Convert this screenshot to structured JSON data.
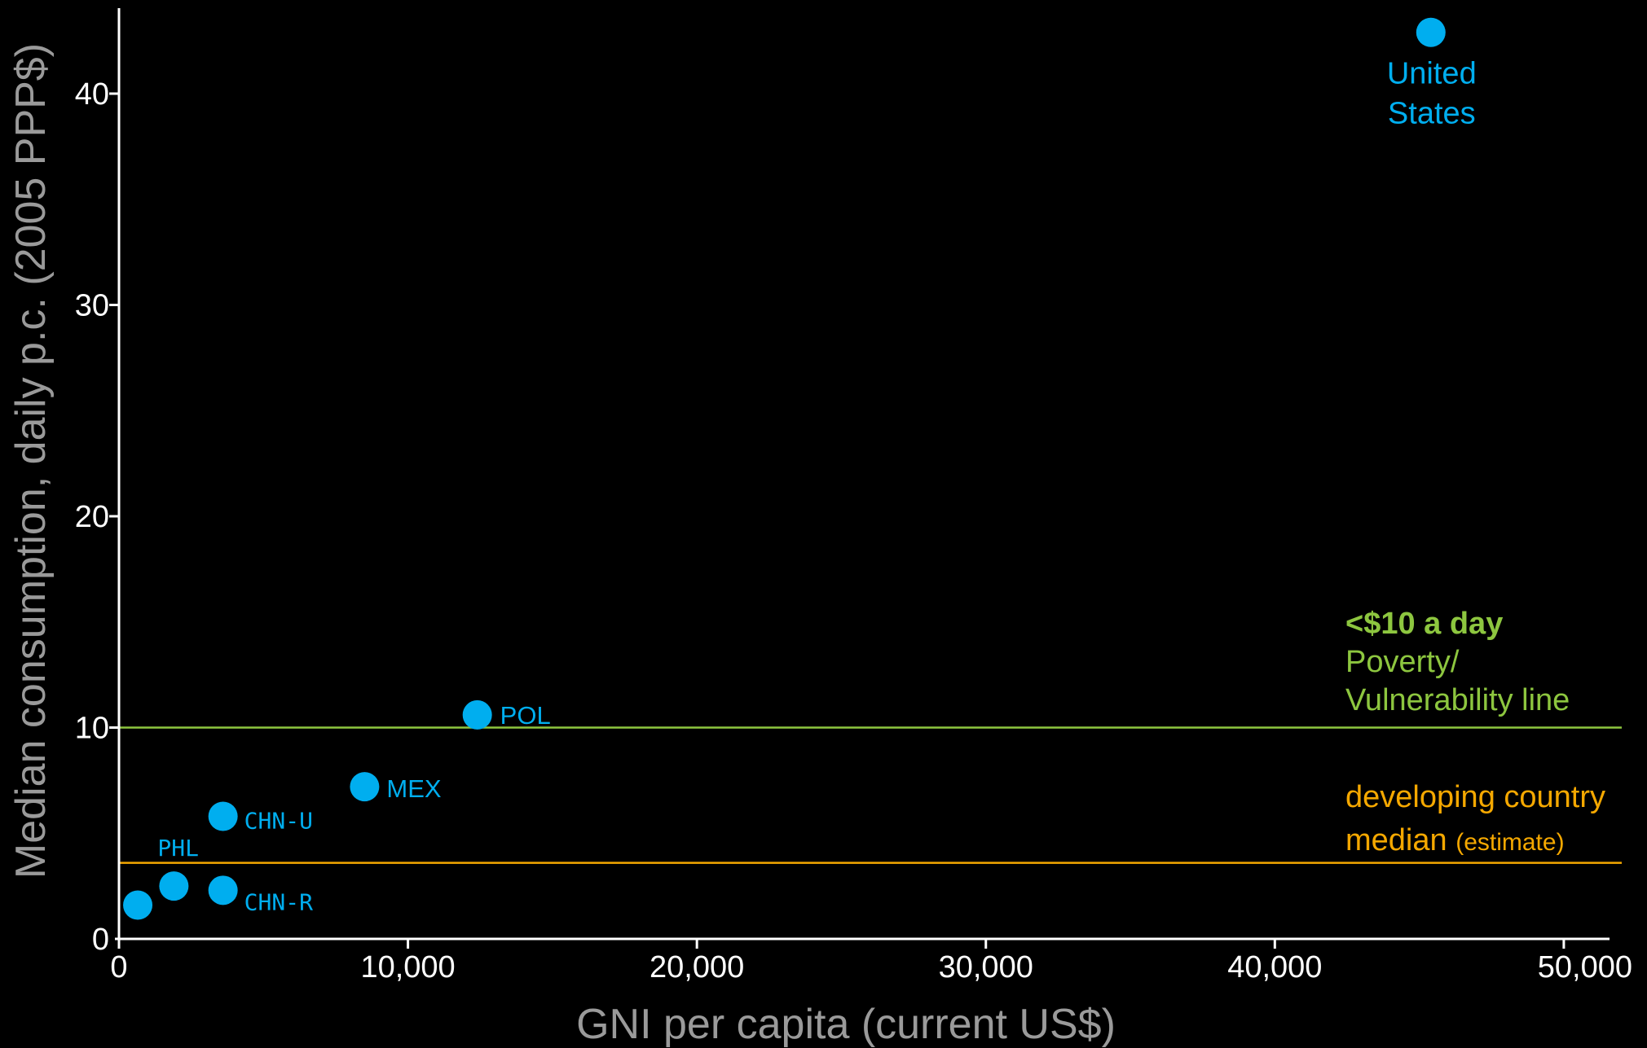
{
  "chart_data": {
    "type": "scatter",
    "title": "",
    "xlabel": "GNI per capita (current US$)",
    "ylabel": "Median consumption, daily p.c. (2005 PPP$)",
    "xlim": [
      0,
      51500
    ],
    "ylim": [
      0,
      44.2
    ],
    "x_ticks": [
      0,
      10000,
      20000,
      30000,
      40000,
      50000
    ],
    "x_tick_labels": [
      "0",
      "10,000",
      "20,000",
      "30,000",
      "40,000",
      "50,000"
    ],
    "y_ticks": [
      0,
      10,
      20,
      30,
      40
    ],
    "y_tick_labels": [
      "0",
      "10",
      "20",
      "30",
      "40"
    ],
    "grid": false,
    "point_color": "#00aeef",
    "points": [
      {
        "label": "",
        "x": 650,
        "y": 1.6
      },
      {
        "label": "PHL",
        "x": 1900,
        "y": 2.5
      },
      {
        "label": "CHN-R",
        "x": 3600,
        "y": 2.3
      },
      {
        "label": "CHN-U",
        "x": 3600,
        "y": 5.8
      },
      {
        "label": "MEX",
        "x": 8500,
        "y": 7.2
      },
      {
        "label": "POL",
        "x": 12400,
        "y": 10.6
      },
      {
        "label": "United States",
        "label_lines": [
          "United",
          "States"
        ],
        "x": 45400,
        "y": 42.9
      }
    ],
    "reference_lines": [
      {
        "name": "poverty_line",
        "y": 10,
        "color": "#8dc63f",
        "label_bold": "<$10 a day",
        "label_lines": [
          "Poverty/",
          "Vulnerability line"
        ]
      },
      {
        "name": "developing_median",
        "y": 3.6,
        "color": "#f5a800",
        "label_line1": "developing country",
        "label_line2_main": "median",
        "label_line2_small": "(estimate)"
      }
    ]
  }
}
